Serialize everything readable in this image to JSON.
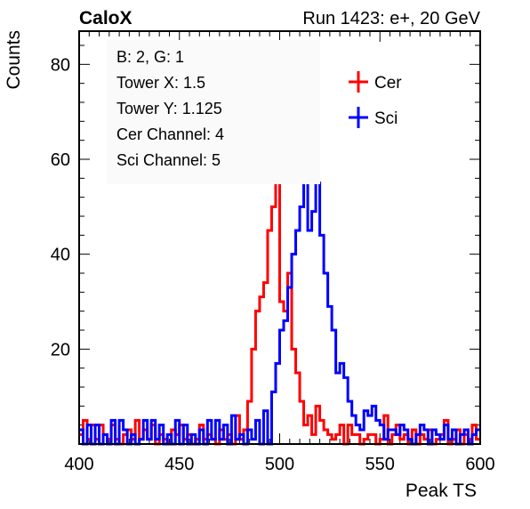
{
  "header": {
    "brand": "CaloX",
    "run_info": "Run 1423: e+, 20 GeV"
  },
  "info_box": {
    "lines": [
      "B: 2, G: 1",
      "Tower X: 1.5",
      "Tower Y: 1.125",
      "Cer Channel: 4",
      "Sci Channel: 5"
    ]
  },
  "chart_data": {
    "type": "histogram-step",
    "xlabel": "Peak TS",
    "ylabel": "Counts",
    "xlim": [
      400,
      600
    ],
    "ylim": [
      0,
      87
    ],
    "x_ticks": [
      400,
      450,
      500,
      550,
      600
    ],
    "y_ticks": [
      20,
      40,
      60,
      80
    ],
    "legend_position": "top-right",
    "x_start": 400,
    "bin_width": 2,
    "series": [
      {
        "name": "Cer",
        "color": "#ff0000",
        "values": [
          2,
          5,
          1,
          4,
          1,
          4,
          2,
          1,
          4,
          1,
          0,
          2,
          3,
          1,
          5,
          1,
          3,
          1,
          4,
          0,
          2,
          1,
          0,
          3,
          2,
          4,
          1,
          2,
          0,
          1,
          4,
          1,
          2,
          1,
          0,
          3,
          1,
          2,
          0,
          6,
          1,
          3,
          9,
          20,
          28,
          31,
          34,
          45,
          50,
          62,
          30,
          28,
          36,
          20,
          15,
          9,
          4,
          6,
          2,
          8,
          5,
          3,
          2,
          1,
          2,
          4,
          0,
          4,
          2,
          2,
          0,
          1,
          2,
          2,
          0,
          1,
          6,
          0,
          2,
          4,
          1,
          2,
          0,
          3,
          0,
          2,
          1,
          3,
          0,
          1,
          2,
          5,
          0,
          1,
          3,
          0,
          2,
          1,
          4,
          1
        ]
      },
      {
        "name": "Sci",
        "color": "#0000ff",
        "values": [
          3,
          0,
          4,
          0,
          4,
          0,
          2,
          0,
          5,
          0,
          5,
          3,
          0,
          2,
          0,
          1,
          5,
          1,
          5,
          1,
          4,
          0,
          2,
          0,
          5,
          0,
          4,
          0,
          2,
          0,
          3,
          0,
          5,
          1,
          5,
          1,
          4,
          0,
          6,
          1,
          2,
          0,
          3,
          1,
          5,
          0,
          7,
          0,
          11,
          17,
          24,
          26,
          33,
          40,
          45,
          50,
          57,
          45,
          49,
          55,
          44,
          36,
          29,
          24,
          15,
          17,
          14,
          9,
          6,
          4,
          3,
          7,
          6,
          8,
          5,
          4,
          1,
          3,
          3,
          2,
          4,
          3,
          1,
          0,
          2,
          4,
          3,
          0,
          3,
          2,
          1,
          4,
          1,
          3,
          0,
          2,
          3,
          0,
          2,
          3
        ]
      }
    ]
  }
}
